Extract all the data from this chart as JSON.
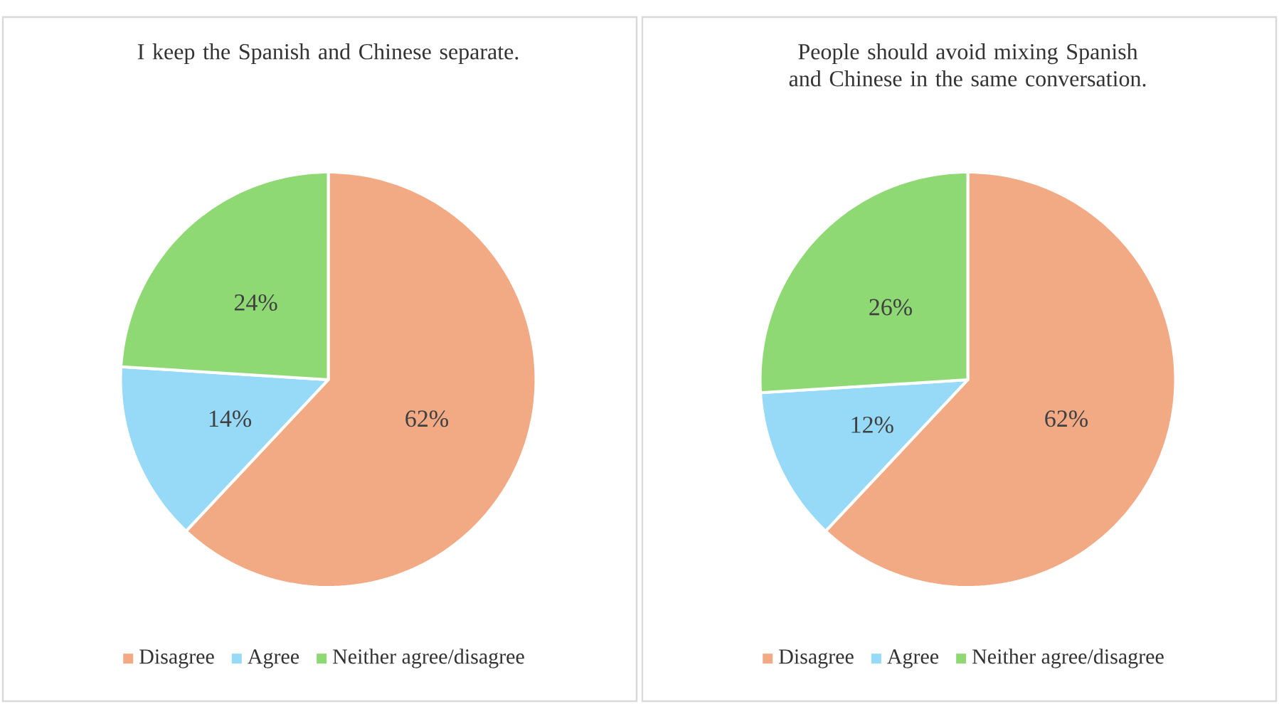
{
  "chart_data": [
    {
      "type": "pie",
      "title": "I keep the Spanish and Chinese separate.",
      "categories": [
        "Disagree",
        "Agree",
        "Neither agree/disagree"
      ],
      "values": [
        62,
        14,
        24
      ],
      "colors": [
        "#f2aa84",
        "#97daf7",
        "#8fd974"
      ],
      "value_labels": [
        "62%",
        "14%",
        "24%"
      ],
      "legend": "bottom"
    },
    {
      "type": "pie",
      "title": "People should avoid mixing Spanish and Chinese in the same conversation.",
      "categories": [
        "Disagree",
        "Agree",
        "Neither agree/disagree"
      ],
      "values": [
        62,
        12,
        26
      ],
      "colors": [
        "#f2aa84",
        "#97daf7",
        "#8fd974"
      ],
      "value_labels": [
        "62%",
        "12%",
        "26%"
      ],
      "legend": "bottom"
    }
  ]
}
